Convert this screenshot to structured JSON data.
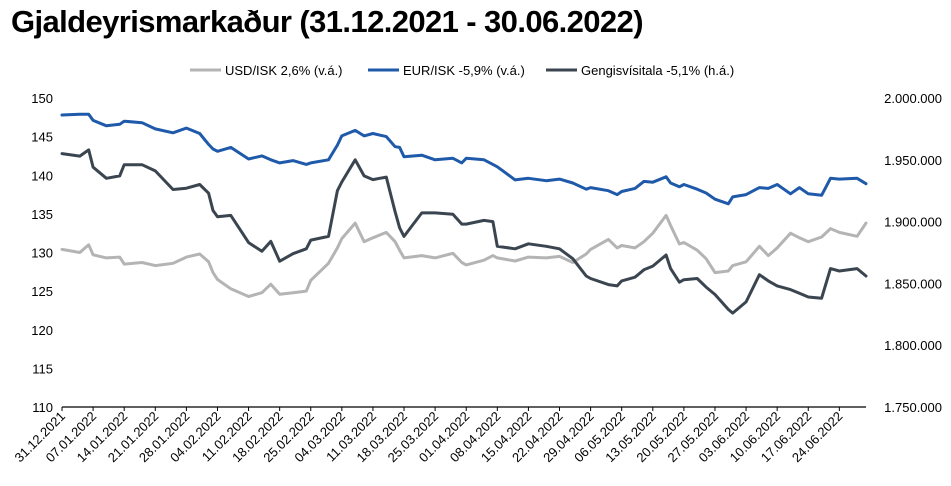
{
  "title": "Gjaldeyrismarkaður (31.12.2021 - 30.06.2022)",
  "chart_data": {
    "type": "line",
    "title": "Gjaldeyrismarkaður (31.12.2021 - 30.06.2022)",
    "legend_position": "top",
    "grid": false,
    "y_left": {
      "range": [
        110,
        150
      ],
      "ticks": [
        "150",
        "145",
        "140",
        "135",
        "130",
        "125",
        "120",
        "115",
        "110"
      ]
    },
    "y_right": {
      "range": [
        1750000,
        2000000
      ],
      "ticks": [
        "2.000.000",
        "1.950.000",
        "1.900.000",
        "1.850.000",
        "1.800.000",
        "1.750.000"
      ]
    },
    "x_ticks": [
      "31.12.2021",
      "07.01.2022",
      "14.01.2022",
      "21.01.2022",
      "28.01.2022",
      "04.02.2022",
      "11.02.2022",
      "18.02.2022",
      "25.02.2022",
      "04.03.2022",
      "11.03.2022",
      "18.03.2022",
      "25.03.2022",
      "01.04.2022",
      "08.04.2022",
      "15.04.2022",
      "22.04.2022",
      "29.04.2022",
      "06.05.2022",
      "13.05.2022",
      "20.05.2022",
      "27.05.2022",
      "03.06.2022",
      "10.06.2022",
      "17.06.2022",
      "24.06.2022"
    ],
    "x_end": "30.06.2022",
    "series": [
      {
        "name": "USD/ISK 2,6% (v.á.)",
        "axis": "left",
        "color": "#b4b4b4",
        "points": [
          [
            "31.12.2021",
            130.4
          ],
          [
            "04.01.2022",
            130.0
          ],
          [
            "06.01.2022",
            131.0
          ],
          [
            "07.01.2022",
            129.7
          ],
          [
            "10.01.2022",
            129.3
          ],
          [
            "13.01.2022",
            129.4
          ],
          [
            "14.01.2022",
            128.5
          ],
          [
            "18.01.2022",
            128.7
          ],
          [
            "21.01.2022",
            128.3
          ],
          [
            "25.01.2022",
            128.6
          ],
          [
            "28.01.2022",
            129.4
          ],
          [
            "31.01.2022",
            129.8
          ],
          [
            "02.02.2022",
            128.8
          ],
          [
            "03.02.2022",
            127.4
          ],
          [
            "04.02.2022",
            126.5
          ],
          [
            "07.02.2022",
            125.3
          ],
          [
            "11.02.2022",
            124.3
          ],
          [
            "14.02.2022",
            124.8
          ],
          [
            "16.02.2022",
            125.9
          ],
          [
            "18.02.2022",
            124.6
          ],
          [
            "21.02.2022",
            124.8
          ],
          [
            "24.02.2022",
            125.0
          ],
          [
            "25.02.2022",
            126.4
          ],
          [
            "01.03.2022",
            128.6
          ],
          [
            "03.03.2022",
            130.6
          ],
          [
            "04.03.2022",
            131.8
          ],
          [
            "07.03.2022",
            133.8
          ],
          [
            "09.03.2022",
            131.4
          ],
          [
            "11.03.2022",
            131.9
          ],
          [
            "14.03.2022",
            132.6
          ],
          [
            "16.03.2022",
            131.4
          ],
          [
            "17.03.2022",
            130.3
          ],
          [
            "18.03.2022",
            129.3
          ],
          [
            "22.03.2022",
            129.6
          ],
          [
            "25.03.2022",
            129.3
          ],
          [
            "29.03.2022",
            129.9
          ],
          [
            "31.03.2022",
            128.7
          ],
          [
            "01.04.2022",
            128.4
          ],
          [
            "05.04.2022",
            129.0
          ],
          [
            "07.04.2022",
            129.6
          ],
          [
            "08.04.2022",
            129.3
          ],
          [
            "12.04.2022",
            128.9
          ],
          [
            "15.04.2022",
            129.4
          ],
          [
            "19.04.2022",
            129.3
          ],
          [
            "22.04.2022",
            129.5
          ],
          [
            "25.04.2022",
            128.7
          ],
          [
            "28.04.2022",
            129.8
          ],
          [
            "29.04.2022",
            130.4
          ],
          [
            "03.05.2022",
            131.7
          ],
          [
            "05.05.2022",
            130.6
          ],
          [
            "06.05.2022",
            130.9
          ],
          [
            "09.05.2022",
            130.6
          ],
          [
            "11.05.2022",
            131.4
          ],
          [
            "13.05.2022",
            132.5
          ],
          [
            "16.05.2022",
            134.8
          ],
          [
            "17.05.2022",
            133.5
          ],
          [
            "19.05.2022",
            131.1
          ],
          [
            "20.05.2022",
            131.3
          ],
          [
            "23.05.2022",
            130.3
          ],
          [
            "25.05.2022",
            129.2
          ],
          [
            "27.05.2022",
            127.4
          ],
          [
            "30.05.2022",
            127.6
          ],
          [
            "31.05.2022",
            128.3
          ],
          [
            "03.06.2022",
            128.8
          ],
          [
            "06.06.2022",
            130.8
          ],
          [
            "08.06.2022",
            129.6
          ],
          [
            "10.06.2022",
            130.6
          ],
          [
            "13.06.2022",
            132.5
          ],
          [
            "15.06.2022",
            131.9
          ],
          [
            "17.06.2022",
            131.4
          ],
          [
            "20.06.2022",
            132.0
          ],
          [
            "22.06.2022",
            133.1
          ],
          [
            "24.06.2022",
            132.6
          ],
          [
            "28.06.2022",
            132.1
          ],
          [
            "30.06.2022",
            133.8
          ]
        ]
      },
      {
        "name": "EUR/ISK -5,9% (v.á.)",
        "axis": "left",
        "color": "#1f5aaa",
        "points": [
          [
            "31.12.2021",
            147.8
          ],
          [
            "04.01.2022",
            147.9
          ],
          [
            "06.01.2022",
            147.9
          ],
          [
            "07.01.2022",
            147.1
          ],
          [
            "10.01.2022",
            146.4
          ],
          [
            "13.01.2022",
            146.6
          ],
          [
            "14.01.2022",
            147.0
          ],
          [
            "18.01.2022",
            146.8
          ],
          [
            "21.01.2022",
            146.0
          ],
          [
            "25.01.2022",
            145.5
          ],
          [
            "28.01.2022",
            146.1
          ],
          [
            "31.01.2022",
            145.4
          ],
          [
            "02.02.2022",
            144.0
          ],
          [
            "03.02.2022",
            143.4
          ],
          [
            "04.02.2022",
            143.1
          ],
          [
            "07.02.2022",
            143.6
          ],
          [
            "11.02.2022",
            142.1
          ],
          [
            "14.02.2022",
            142.5
          ],
          [
            "16.02.2022",
            142.0
          ],
          [
            "18.02.2022",
            141.6
          ],
          [
            "21.02.2022",
            141.9
          ],
          [
            "24.02.2022",
            141.4
          ],
          [
            "25.02.2022",
            141.6
          ],
          [
            "01.03.2022",
            142.0
          ],
          [
            "03.03.2022",
            143.9
          ],
          [
            "04.03.2022",
            145.1
          ],
          [
            "07.03.2022",
            145.8
          ],
          [
            "09.03.2022",
            145.1
          ],
          [
            "11.03.2022",
            145.4
          ],
          [
            "14.03.2022",
            145.0
          ],
          [
            "16.03.2022",
            143.7
          ],
          [
            "17.03.2022",
            143.6
          ],
          [
            "18.03.2022",
            142.4
          ],
          [
            "22.03.2022",
            142.6
          ],
          [
            "25.03.2022",
            142.0
          ],
          [
            "29.03.2022",
            142.2
          ],
          [
            "31.03.2022",
            141.6
          ],
          [
            "01.04.2022",
            142.2
          ],
          [
            "05.04.2022",
            142.0
          ],
          [
            "07.04.2022",
            141.4
          ],
          [
            "08.04.2022",
            141.1
          ],
          [
            "12.04.2022",
            139.4
          ],
          [
            "15.04.2022",
            139.6
          ],
          [
            "19.04.2022",
            139.3
          ],
          [
            "22.04.2022",
            139.5
          ],
          [
            "25.04.2022",
            139.0
          ],
          [
            "28.04.2022",
            138.2
          ],
          [
            "29.04.2022",
            138.4
          ],
          [
            "03.05.2022",
            138.0
          ],
          [
            "05.05.2022",
            137.5
          ],
          [
            "06.05.2022",
            137.9
          ],
          [
            "09.05.2022",
            138.3
          ],
          [
            "11.05.2022",
            139.2
          ],
          [
            "13.05.2022",
            139.1
          ],
          [
            "16.05.2022",
            139.8
          ],
          [
            "17.05.2022",
            139.0
          ],
          [
            "19.05.2022",
            138.5
          ],
          [
            "20.05.2022",
            138.8
          ],
          [
            "23.05.2022",
            138.2
          ],
          [
            "25.05.2022",
            137.7
          ],
          [
            "27.05.2022",
            136.9
          ],
          [
            "30.05.2022",
            136.3
          ],
          [
            "31.05.2022",
            137.2
          ],
          [
            "03.06.2022",
            137.5
          ],
          [
            "06.06.2022",
            138.4
          ],
          [
            "08.06.2022",
            138.3
          ],
          [
            "10.06.2022",
            138.8
          ],
          [
            "13.06.2022",
            137.6
          ],
          [
            "15.06.2022",
            138.4
          ],
          [
            "17.06.2022",
            137.6
          ],
          [
            "20.06.2022",
            137.4
          ],
          [
            "22.06.2022",
            139.6
          ],
          [
            "24.06.2022",
            139.5
          ],
          [
            "28.06.2022",
            139.6
          ],
          [
            "30.06.2022",
            138.9
          ]
        ]
      },
      {
        "name": "Gengisvísitala -5,1% (h.á.)",
        "axis": "right",
        "color": "#3a4550",
        "points": [
          [
            "31.12.2021",
            1955000
          ],
          [
            "04.01.2022",
            1953000
          ],
          [
            "06.01.2022",
            1958000
          ],
          [
            "07.01.2022",
            1944000
          ],
          [
            "10.01.2022",
            1935000
          ],
          [
            "13.01.2022",
            1937000
          ],
          [
            "14.01.2022",
            1946000
          ],
          [
            "18.01.2022",
            1946000
          ],
          [
            "21.01.2022",
            1941000
          ],
          [
            "25.01.2022",
            1926000
          ],
          [
            "28.01.2022",
            1927000
          ],
          [
            "31.01.2022",
            1930000
          ],
          [
            "02.02.2022",
            1923000
          ],
          [
            "03.02.2022",
            1909000
          ],
          [
            "04.02.2022",
            1904000
          ],
          [
            "07.02.2022",
            1905000
          ],
          [
            "11.02.2022",
            1883000
          ],
          [
            "14.02.2022",
            1876000
          ],
          [
            "16.02.2022",
            1884000
          ],
          [
            "18.02.2022",
            1868000
          ],
          [
            "21.02.2022",
            1874000
          ],
          [
            "24.02.2022",
            1878000
          ],
          [
            "25.02.2022",
            1885000
          ],
          [
            "01.03.2022",
            1888000
          ],
          [
            "03.03.2022",
            1925000
          ],
          [
            "04.03.2022",
            1932000
          ],
          [
            "07.03.2022",
            1950000
          ],
          [
            "09.03.2022",
            1937000
          ],
          [
            "11.03.2022",
            1934000
          ],
          [
            "14.03.2022",
            1936000
          ],
          [
            "16.03.2022",
            1908000
          ],
          [
            "17.03.2022",
            1895000
          ],
          [
            "18.03.2022",
            1888000
          ],
          [
            "22.03.2022",
            1907000
          ],
          [
            "25.03.2022",
            1907000
          ],
          [
            "29.03.2022",
            1906000
          ],
          [
            "31.03.2022",
            1898000
          ],
          [
            "01.04.2022",
            1898000
          ],
          [
            "05.04.2022",
            1901000
          ],
          [
            "07.04.2022",
            1900000
          ],
          [
            "08.04.2022",
            1880000
          ],
          [
            "12.04.2022",
            1878000
          ],
          [
            "15.04.2022",
            1882000
          ],
          [
            "19.04.2022",
            1880000
          ],
          [
            "22.04.2022",
            1878000
          ],
          [
            "25.04.2022",
            1870000
          ],
          [
            "28.04.2022",
            1856000
          ],
          [
            "29.04.2022",
            1854000
          ],
          [
            "03.05.2022",
            1849000
          ],
          [
            "05.05.2022",
            1848000
          ],
          [
            "06.05.2022",
            1852000
          ],
          [
            "09.05.2022",
            1855000
          ],
          [
            "11.05.2022",
            1861000
          ],
          [
            "13.05.2022",
            1864000
          ],
          [
            "16.05.2022",
            1873000
          ],
          [
            "17.05.2022",
            1862000
          ],
          [
            "19.05.2022",
            1851000
          ],
          [
            "20.05.2022",
            1853000
          ],
          [
            "23.05.2022",
            1854000
          ],
          [
            "25.05.2022",
            1847000
          ],
          [
            "27.05.2022",
            1841000
          ],
          [
            "30.05.2022",
            1829000
          ],
          [
            "31.05.2022",
            1826000
          ],
          [
            "03.06.2022",
            1835000
          ],
          [
            "06.06.2022",
            1857000
          ],
          [
            "08.06.2022",
            1852000
          ],
          [
            "10.06.2022",
            1848000
          ],
          [
            "13.06.2022",
            1845000
          ],
          [
            "15.06.2022",
            1842000
          ],
          [
            "17.06.2022",
            1839000
          ],
          [
            "20.06.2022",
            1838000
          ],
          [
            "22.06.2022",
            1862000
          ],
          [
            "24.06.2022",
            1860000
          ],
          [
            "28.06.2022",
            1862000
          ],
          [
            "30.06.2022",
            1856000
          ]
        ]
      }
    ]
  }
}
